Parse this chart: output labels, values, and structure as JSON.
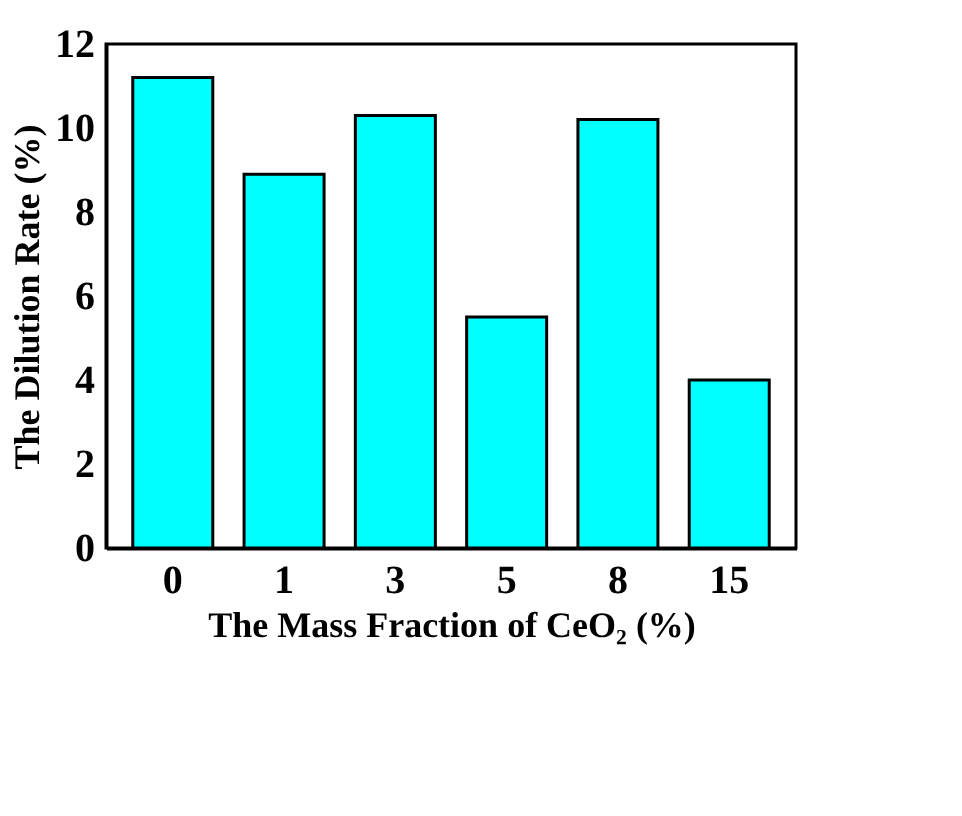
{
  "chart_data": {
    "type": "bar",
    "xlabel": "The Mass Fraction of CeO₂ (%)",
    "ylabel": "The Dilution Rate (%)",
    "categories": [
      "0",
      "1",
      "3",
      "5",
      "8",
      "15"
    ],
    "values": [
      11.2,
      8.9,
      10.3,
      5.5,
      10.2,
      4.0
    ],
    "color": "#00ffff",
    "ylim": [
      0,
      12
    ],
    "yticks": [
      0,
      2,
      4,
      6,
      8,
      10,
      12
    ],
    "grid": false
  }
}
